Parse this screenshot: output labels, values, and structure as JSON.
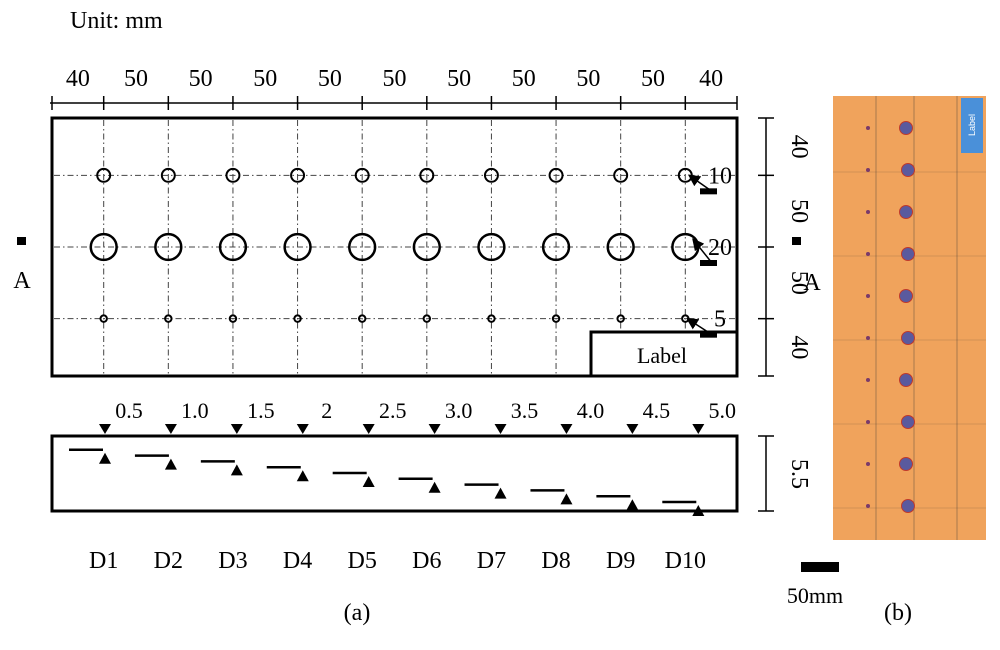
{
  "figure": {
    "unit_label": "Unit: mm",
    "panel_a_caption": "(a)",
    "panel_b_caption": "(b)",
    "scale_bar_label": "50mm",
    "section_mark": "A"
  },
  "top_dimensions": [
    "40",
    "50",
    "50",
    "50",
    "50",
    "50",
    "50",
    "50",
    "50",
    "50",
    "40"
  ],
  "right_dimensions": [
    "40",
    "50",
    "50",
    "40"
  ],
  "hole_rows": [
    {
      "diameter_label": "10",
      "diameter_mm": 10
    },
    {
      "diameter_label": "20",
      "diameter_mm": 20
    },
    {
      "diameter_label": "5",
      "diameter_mm": 5
    }
  ],
  "label_box_text": "Label",
  "depths": [
    "0.5",
    "1.0",
    "1.5",
    "2",
    "2.5",
    "3.0",
    "3.5",
    "4.0",
    "4.5",
    "5.0"
  ],
  "section_thickness": "5.5",
  "defect_names": [
    "D1",
    "D2",
    "D3",
    "D4",
    "D5",
    "D6",
    "D7",
    "D8",
    "D9",
    "D10"
  ],
  "photo": {
    "background_color": "#f0a35c",
    "label_badge_text": "Label",
    "label_badge_color": "#4a90d9",
    "defect_color": "#5a5a9e"
  }
}
